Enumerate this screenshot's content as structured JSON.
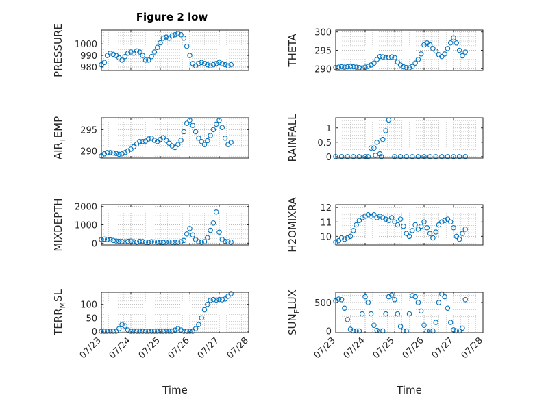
{
  "figure": {
    "title": "Figure 2 low"
  },
  "colors": {
    "marker": "#0072BD",
    "axis": "#262626",
    "grid": "#b4b4b4"
  },
  "chart_data": [
    {
      "type": "scatter",
      "panel": "PRESSURE",
      "ylabel": "PRESSURE",
      "xlabel": "",
      "title": "Figure 2 low",
      "xlim": [
        0,
        5
      ],
      "ylim": [
        977,
        1012
      ],
      "yticks": [
        980,
        990,
        1000
      ],
      "ytick_labels": [
        "980",
        "990",
        "1000"
      ],
      "xticks": [
        0,
        1,
        2,
        3,
        4,
        5
      ],
      "xtick_labels": [],
      "x": [
        0.0,
        0.1,
        0.2,
        0.3,
        0.4,
        0.5,
        0.6,
        0.7,
        0.8,
        0.9,
        1.0,
        1.1,
        1.2,
        1.3,
        1.4,
        1.5,
        1.6,
        1.7,
        1.8,
        1.9,
        2.0,
        2.1,
        2.2,
        2.3,
        2.4,
        2.5,
        2.6,
        2.7,
        2.8,
        2.9,
        3.0,
        3.1,
        3.2,
        3.3,
        3.4,
        3.5,
        3.6,
        3.7,
        3.8,
        3.9,
        4.0,
        4.1,
        4.2,
        4.3,
        4.4
      ],
      "y": [
        982,
        984,
        990,
        992,
        991,
        990,
        988,
        986,
        989,
        992,
        993,
        992,
        994,
        993,
        990,
        986,
        986,
        989,
        993,
        997,
        1001,
        1005,
        1006,
        1005,
        1007,
        1008,
        1009,
        1008,
        1005,
        998,
        990,
        983,
        981,
        983,
        984,
        983,
        982,
        981,
        982,
        983,
        984,
        983,
        982,
        981,
        982
      ],
      "grid": "major+minor"
    },
    {
      "type": "scatter",
      "panel": "THETA",
      "ylabel": "THETA",
      "xlabel": "",
      "title": "",
      "xlim": [
        0,
        5
      ],
      "ylim": [
        289.5,
        300.5
      ],
      "yticks": [
        290,
        295,
        300
      ],
      "ytick_labels": [
        "290",
        "295",
        "300"
      ],
      "xticks": [
        0,
        1,
        2,
        3,
        4,
        5
      ],
      "xtick_labels": [],
      "x": [
        0.0,
        0.1,
        0.2,
        0.3,
        0.4,
        0.5,
        0.6,
        0.7,
        0.8,
        0.9,
        1.0,
        1.1,
        1.2,
        1.3,
        1.4,
        1.5,
        1.6,
        1.7,
        1.8,
        1.9,
        2.0,
        2.1,
        2.2,
        2.3,
        2.4,
        2.5,
        2.6,
        2.7,
        2.8,
        2.9,
        3.0,
        3.1,
        3.2,
        3.3,
        3.4,
        3.5,
        3.6,
        3.7,
        3.8,
        3.9,
        4.0,
        4.1,
        4.2,
        4.3,
        4.4
      ],
      "y": [
        290.3,
        290.4,
        290.5,
        290.4,
        290.5,
        290.6,
        290.5,
        290.4,
        290.3,
        290.2,
        290.4,
        290.6,
        291.0,
        291.5,
        292.5,
        293.3,
        293.2,
        293.0,
        293.1,
        293.2,
        293.0,
        291.8,
        291.0,
        290.5,
        290.3,
        290.2,
        290.6,
        291.5,
        292.5,
        294.0,
        296.5,
        297.0,
        296.5,
        295.5,
        294.8,
        293.8,
        293.3,
        294.0,
        295.5,
        297.0,
        298.4,
        297.0,
        295.0,
        293.5,
        294.5
      ],
      "grid": "major+minor"
    },
    {
      "type": "scatter",
      "panel": "AIR_TEMP",
      "ylabel": "AIR",
      "ylabel_sub": "T",
      "ylabel_rest": "EMP",
      "xlabel": "",
      "title": "",
      "xlim": [
        0,
        5
      ],
      "ylim": [
        288.3,
        297.8
      ],
      "yticks": [
        290,
        295
      ],
      "ytick_labels": [
        "290",
        "295"
      ],
      "xticks": [
        0,
        1,
        2,
        3,
        4,
        5
      ],
      "xtick_labels": [],
      "x": [
        0.0,
        0.1,
        0.2,
        0.3,
        0.4,
        0.5,
        0.6,
        0.7,
        0.8,
        0.9,
        1.0,
        1.1,
        1.2,
        1.3,
        1.4,
        1.5,
        1.6,
        1.7,
        1.8,
        1.9,
        2.0,
        2.1,
        2.2,
        2.3,
        2.4,
        2.5,
        2.6,
        2.7,
        2.8,
        2.9,
        3.0,
        3.1,
        3.2,
        3.3,
        3.4,
        3.5,
        3.6,
        3.7,
        3.8,
        3.9,
        4.0,
        4.1,
        4.2,
        4.3,
        4.4
      ],
      "y": [
        288.8,
        289.3,
        289.6,
        289.6,
        289.5,
        289.4,
        289.2,
        289.3,
        289.6,
        290.0,
        290.4,
        291.0,
        291.6,
        292.2,
        292.2,
        292.3,
        292.8,
        293.0,
        292.5,
        292.2,
        292.7,
        293.1,
        292.5,
        291.8,
        291.2,
        290.8,
        291.5,
        292.5,
        294.5,
        296.5,
        297.2,
        296.0,
        294.5,
        293.0,
        292.2,
        291.5,
        292.4,
        293.6,
        295.0,
        296.3,
        297.2,
        295.5,
        293.0,
        291.5,
        292.0
      ],
      "grid": "major+minor"
    },
    {
      "type": "scatter",
      "panel": "RAINFALL",
      "ylabel": "RAINFALL",
      "xlabel": "",
      "title": "",
      "xlim": [
        0,
        5
      ],
      "ylim": [
        -0.05,
        1.35
      ],
      "yticks": [
        0,
        0.5,
        1
      ],
      "ytick_labels": [
        "0",
        "0.5",
        "1"
      ],
      "xticks": [
        0,
        1,
        2,
        3,
        4,
        5
      ],
      "xtick_labels": [],
      "x": [
        0.0,
        0.2,
        0.4,
        0.6,
        0.8,
        1.0,
        1.1,
        1.2,
        1.3,
        1.35,
        1.4,
        1.5,
        1.55,
        1.6,
        1.7,
        1.8,
        2.0,
        2.2,
        2.4,
        2.6,
        2.8,
        3.0,
        3.2,
        3.4,
        3.6,
        3.8,
        4.0,
        4.2,
        4.4
      ],
      "y": [
        0,
        0,
        0,
        0,
        0,
        0,
        0,
        0.3,
        0.3,
        0.05,
        0.5,
        0.1,
        0,
        0.6,
        0.9,
        1.27,
        0,
        0,
        0,
        0,
        0,
        0,
        0,
        0,
        0,
        0,
        0,
        0,
        0
      ],
      "grid": "major+minor"
    },
    {
      "type": "scatter",
      "panel": "MIXDEPTH",
      "ylabel": "MIXDEPTH",
      "xlabel": "",
      "title": "",
      "xlim": [
        0,
        5
      ],
      "ylim": [
        -100,
        2100
      ],
      "yticks": [
        0,
        1000,
        2000
      ],
      "ytick_labels": [
        "0",
        "1000",
        "2000"
      ],
      "xticks": [
        0,
        1,
        2,
        3,
        4,
        5
      ],
      "xtick_labels": [],
      "x": [
        0.0,
        0.1,
        0.2,
        0.3,
        0.4,
        0.5,
        0.6,
        0.7,
        0.8,
        0.9,
        1.0,
        1.1,
        1.2,
        1.3,
        1.4,
        1.5,
        1.6,
        1.7,
        1.8,
        1.9,
        2.0,
        2.1,
        2.2,
        2.3,
        2.4,
        2.5,
        2.6,
        2.7,
        2.8,
        2.9,
        3.0,
        3.1,
        3.2,
        3.3,
        3.4,
        3.5,
        3.6,
        3.7,
        3.8,
        3.9,
        4.0,
        4.1,
        4.2,
        4.3,
        4.4
      ],
      "y": [
        200,
        220,
        200,
        180,
        150,
        120,
        100,
        90,
        80,
        100,
        120,
        80,
        60,
        100,
        90,
        60,
        50,
        80,
        70,
        60,
        50,
        40,
        60,
        70,
        60,
        50,
        60,
        80,
        150,
        500,
        800,
        450,
        200,
        80,
        60,
        80,
        300,
        700,
        1100,
        1700,
        600,
        200,
        100,
        80,
        60
      ],
      "grid": "major+minor"
    },
    {
      "type": "scatter",
      "panel": "H2OMIXRA",
      "ylabel": "H2OMIXRA",
      "xlabel": "",
      "title": "",
      "xlim": [
        0,
        5
      ],
      "ylim": [
        9.4,
        12.2
      ],
      "yticks": [
        10,
        11,
        12
      ],
      "ytick_labels": [
        "10",
        "11",
        "12"
      ],
      "xticks": [
        0,
        1,
        2,
        3,
        4,
        5
      ],
      "xtick_labels": [],
      "x": [
        0.0,
        0.1,
        0.2,
        0.3,
        0.4,
        0.5,
        0.6,
        0.7,
        0.8,
        0.9,
        1.0,
        1.1,
        1.2,
        1.3,
        1.4,
        1.5,
        1.6,
        1.7,
        1.8,
        1.9,
        2.0,
        2.1,
        2.2,
        2.3,
        2.4,
        2.5,
        2.6,
        2.7,
        2.8,
        2.9,
        3.0,
        3.1,
        3.2,
        3.3,
        3.4,
        3.5,
        3.6,
        3.7,
        3.8,
        3.9,
        4.0,
        4.1,
        4.2,
        4.3,
        4.4
      ],
      "y": [
        9.6,
        9.7,
        9.9,
        9.8,
        9.9,
        10.0,
        10.4,
        10.8,
        11.1,
        11.3,
        11.4,
        11.5,
        11.4,
        11.5,
        11.3,
        11.4,
        11.3,
        11.2,
        11.1,
        11.3,
        11.0,
        10.8,
        11.2,
        10.7,
        10.2,
        10.0,
        10.4,
        10.8,
        10.5,
        10.7,
        11.0,
        10.6,
        10.2,
        9.9,
        10.3,
        10.8,
        11.0,
        11.1,
        11.2,
        11.0,
        10.6,
        10.0,
        9.8,
        10.2,
        10.5
      ],
      "grid": "major+minor"
    },
    {
      "type": "scatter",
      "panel": "TERR_MSL",
      "ylabel": "TERR",
      "ylabel_sub": "M",
      "ylabel_rest": "SL",
      "xlabel": "Time",
      "title": "",
      "xlim": [
        0,
        5
      ],
      "ylim": [
        -5,
        145
      ],
      "yticks": [
        0,
        50,
        100
      ],
      "ytick_labels": [
        "0",
        "50",
        "100"
      ],
      "xticks": [
        0,
        1,
        2,
        3,
        4,
        5
      ],
      "xtick_labels": [
        "07/23",
        "07/24",
        "07/25",
        "07/26",
        "07/27",
        "07/28"
      ],
      "x": [
        0.0,
        0.1,
        0.2,
        0.3,
        0.4,
        0.5,
        0.6,
        0.7,
        0.8,
        0.9,
        1.0,
        1.1,
        1.2,
        1.3,
        1.4,
        1.5,
        1.6,
        1.7,
        1.8,
        1.9,
        2.0,
        2.1,
        2.2,
        2.3,
        2.4,
        2.5,
        2.6,
        2.7,
        2.8,
        2.9,
        3.0,
        3.1,
        3.2,
        3.3,
        3.4,
        3.5,
        3.6,
        3.7,
        3.8,
        3.9,
        4.0,
        4.1,
        4.2,
        4.3,
        4.4
      ],
      "y": [
        0,
        0,
        0,
        0,
        0,
        0,
        10,
        25,
        20,
        5,
        0,
        0,
        0,
        0,
        0,
        0,
        0,
        0,
        0,
        0,
        0,
        0,
        0,
        0,
        0,
        5,
        10,
        5,
        0,
        0,
        0,
        0,
        10,
        25,
        50,
        80,
        100,
        115,
        118,
        116,
        118,
        117,
        120,
        130,
        140
      ],
      "grid": "major+minor"
    },
    {
      "type": "scatter",
      "panel": "SUN_FLUX",
      "ylabel": "SUN",
      "ylabel_sub": "F",
      "ylabel_rest": "LUX",
      "xlabel": "Time",
      "title": "",
      "xlim": [
        0,
        5
      ],
      "ylim": [
        -30,
        680
      ],
      "yticks": [
        0,
        500
      ],
      "ytick_labels": [
        "0",
        "500"
      ],
      "xticks": [
        0,
        1,
        2,
        3,
        4,
        5
      ],
      "xtick_labels": [
        "07/23",
        "07/24",
        "07/25",
        "07/26",
        "07/27",
        "07/28"
      ],
      "x": [
        0.0,
        0.1,
        0.2,
        0.3,
        0.4,
        0.5,
        0.6,
        0.7,
        0.8,
        0.9,
        1.0,
        1.1,
        1.2,
        1.3,
        1.4,
        1.5,
        1.6,
        1.7,
        1.8,
        1.9,
        2.0,
        2.1,
        2.2,
        2.3,
        2.4,
        2.5,
        2.6,
        2.7,
        2.8,
        2.9,
        3.0,
        3.1,
        3.2,
        3.3,
        3.4,
        3.5,
        3.6,
        3.7,
        3.8,
        3.9,
        4.0,
        4.1,
        4.2,
        4.3,
        4.4
      ],
      "y": [
        530,
        560,
        550,
        400,
        200,
        30,
        0,
        0,
        0,
        300,
        600,
        500,
        300,
        100,
        10,
        0,
        0,
        300,
        600,
        630,
        550,
        300,
        80,
        0,
        0,
        300,
        620,
        600,
        500,
        350,
        100,
        0,
        0,
        0,
        150,
        500,
        650,
        600,
        400,
        150,
        20,
        0,
        0,
        50,
        550
      ],
      "grid": "major+minor"
    }
  ]
}
